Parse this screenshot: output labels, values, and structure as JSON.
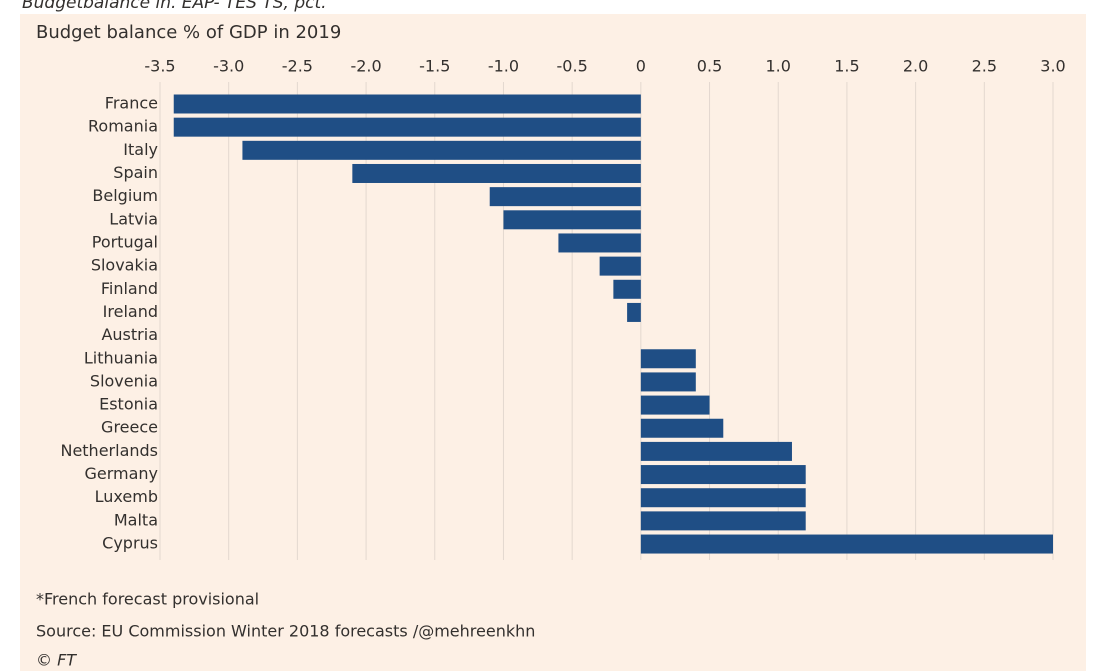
{
  "chart_data": {
    "type": "bar",
    "orientation": "horizontal",
    "caption": "Budgetbalance in. EAP- TES TS, pct.",
    "title": "Budget balance % of GDP in 2019",
    "categories": [
      "France",
      "Romania",
      "Italy",
      "Spain",
      "Belgium",
      "Latvia",
      "Portugal",
      "Slovakia",
      "Finland",
      "Ireland",
      "Austria",
      "Lithuania",
      "Slovenia",
      "Estonia",
      "Greece",
      "Netherlands",
      "Germany",
      "Luxemb",
      "Malta",
      "Cyprus"
    ],
    "values": [
      -3.4,
      -3.4,
      -2.9,
      -2.1,
      -1.1,
      -1.0,
      -0.6,
      -0.3,
      -0.2,
      -0.1,
      0,
      0.4,
      0.4,
      0.5,
      0.6,
      1.1,
      1.2,
      1.2,
      1.2,
      3.0
    ],
    "color": "#1f4e85",
    "xlim": [
      -3.5,
      3.0
    ],
    "xticks": [
      -3.5,
      {
        "value": -3,
        "label": "-3.0"
      },
      -2.5,
      {
        "value": -2,
        "label": "-2.0"
      },
      -1.5,
      {
        "value": -1,
        "label": "-1.0"
      },
      -0.5,
      0,
      0.5,
      {
        "value": 1,
        "label": "1.0"
      },
      1.5,
      {
        "value": 2,
        "label": "2.0"
      },
      2.5,
      {
        "value": 3,
        "label": "3.0"
      }
    ],
    "grid": true,
    "notes": [
      "*French forecast provisional",
      "Source: EU Commission Winter 2018 forecasts /@mehreenkhn",
      "© FT"
    ]
  }
}
